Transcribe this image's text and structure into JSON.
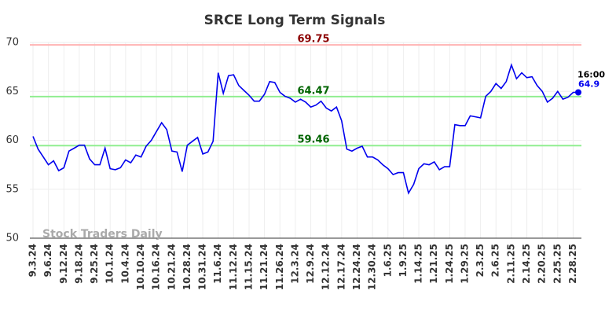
{
  "chart_data": {
    "type": "line",
    "title": "SRCE Long Term Signals",
    "watermark": "Stock Traders Daily",
    "categories": [
      "9.3.24",
      null,
      null,
      "9.6.24",
      null,
      null,
      "9.12.24",
      null,
      null,
      "9.18.24",
      null,
      null,
      "9.25.24",
      null,
      null,
      "10.1.24",
      null,
      null,
      "10.4.24",
      null,
      null,
      "10.10.24",
      null,
      null,
      "10.16.24",
      null,
      null,
      "10.21.24",
      null,
      null,
      "10.28.24",
      null,
      null,
      "10.31.24",
      null,
      null,
      "11.6.24",
      null,
      null,
      "11.12.24",
      null,
      null,
      "11.15.24",
      null,
      null,
      "11.21.24",
      null,
      null,
      "11.26.24",
      null,
      null,
      "12.3.24",
      null,
      null,
      "12.9.24",
      null,
      null,
      "12.12.24",
      null,
      null,
      "12.17.24",
      null,
      null,
      "12.24.24",
      null,
      null,
      "12.30.24",
      null,
      null,
      "1.6.25",
      null,
      null,
      "1.9.25",
      null,
      null,
      "1.14.25",
      null,
      null,
      "1.21.25",
      null,
      null,
      "1.24.25",
      null,
      null,
      "1.29.25",
      null,
      null,
      "2.3.25",
      null,
      null,
      "2.6.25",
      null,
      null,
      "2.11.25",
      null,
      null,
      "2.14.25",
      null,
      null,
      "2.20.25",
      null,
      null,
      "2.25.25",
      null,
      null,
      "2.28.25",
      null
    ],
    "values": [
      60.4,
      59.1,
      58.3,
      57.5,
      57.9,
      56.9,
      57.2,
      58.9,
      59.2,
      59.5,
      59.5,
      58.1,
      57.5,
      57.5,
      59.2,
      57.1,
      57.0,
      57.2,
      58.0,
      57.7,
      58.5,
      58.3,
      59.4,
      60.0,
      60.9,
      61.8,
      61.1,
      58.9,
      58.8,
      56.8,
      59.5,
      59.9,
      60.3,
      58.6,
      58.8,
      59.9,
      66.9,
      64.8,
      66.6,
      66.7,
      65.6,
      65.1,
      64.6,
      64.0,
      64.0,
      64.7,
      66.0,
      65.9,
      64.9,
      64.5,
      64.3,
      63.9,
      64.2,
      63.9,
      63.4,
      63.6,
      64.0,
      63.3,
      63.0,
      63.4,
      62.0,
      59.1,
      58.9,
      59.2,
      59.4,
      58.3,
      58.3,
      58.0,
      57.5,
      57.1,
      56.5,
      56.7,
      56.7,
      54.6,
      55.5,
      57.1,
      57.6,
      57.5,
      57.8,
      57.0,
      57.3,
      57.3,
      61.6,
      61.5,
      61.5,
      62.5,
      62.4,
      62.3,
      64.5,
      65.0,
      65.8,
      65.3,
      66.0,
      67.7,
      66.3,
      66.9,
      66.4,
      66.5,
      65.6,
      65.0,
      63.9,
      64.3,
      65.0,
      64.2,
      64.4,
      64.9,
      64.9
    ],
    "color": "#0000ee",
    "last_time": "16:00",
    "reference_lines": [
      {
        "value": 69.75,
        "color": "#ffb3b3",
        "label_color": "#8b0000"
      },
      {
        "value": 64.47,
        "color": "#90ee90",
        "label_color": "#006400"
      },
      {
        "value": 59.46,
        "color": "#90ee90",
        "label_color": "#006400"
      }
    ],
    "ylim": [
      50,
      70
    ],
    "yticks": [
      50,
      55,
      60,
      65,
      70
    ],
    "grid": true
  }
}
